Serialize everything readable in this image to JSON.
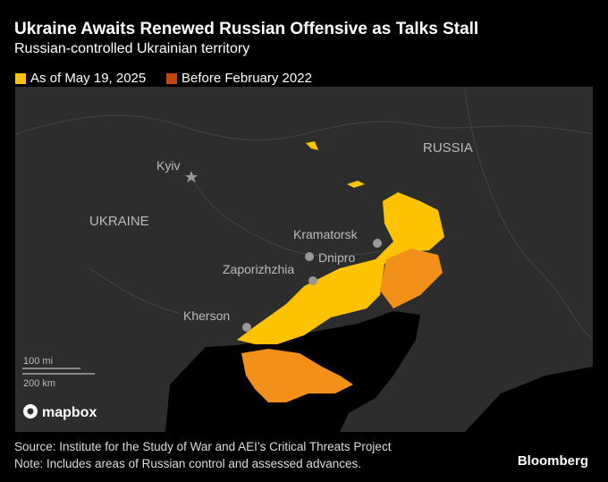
{
  "header": {
    "title": "Ukraine Awaits Renewed Russian Offensive as Talks Stall",
    "subtitle": "Russian-controlled Ukrainian territory"
  },
  "legend": {
    "items": [
      {
        "label": "As of May 19, 2025"
      },
      {
        "label": "Before February 2022"
      }
    ]
  },
  "map": {
    "labels": {
      "kyiv": "Kyiv",
      "ukraine": "UKRAINE",
      "russia": "RUSSIA",
      "kramatorsk": "Kramatorsk",
      "dnipro": "Dnipro",
      "zaporizhzhia": "Zaporizhzhia",
      "kherson": "Kherson"
    },
    "scale": {
      "miles": "100 mi",
      "km": "200 km"
    },
    "attribution": "mapbox"
  },
  "footer": {
    "source": "Source: Institute for the Study of War and AEI’s Critical Threats Project",
    "note": "Note: Includes areas of Russian control and assessed advances.",
    "brand": "Bloomberg"
  }
}
